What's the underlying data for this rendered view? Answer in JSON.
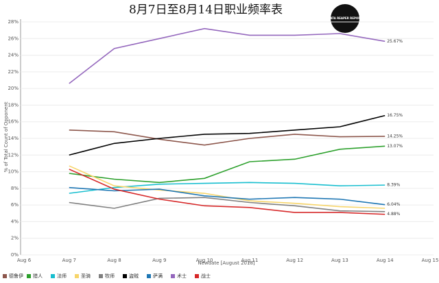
{
  "chart_data": {
    "type": "line",
    "title": "8月7日至8月14日职业频率表",
    "logo": "DATA REAPER REPORT",
    "x_label": "Newdate [August 2018]",
    "y_label": "% of Total Count of Opponent",
    "categories": [
      "Aug 6",
      "Aug 7",
      "Aug 8",
      "Aug 9",
      "Aug 10",
      "Aug 11",
      "Aug 12",
      "Aug 13",
      "Aug 14",
      "Aug 15"
    ],
    "ylim": [
      0,
      28
    ],
    "yticks": [
      {
        "value": 0,
        "label": "0%"
      },
      {
        "value": 2,
        "label": "2%"
      },
      {
        "value": 4,
        "label": "4%"
      },
      {
        "value": 6,
        "label": "6%"
      },
      {
        "value": 8,
        "label": "8%"
      },
      {
        "value": 10,
        "label": "10%"
      },
      {
        "value": 12,
        "label": "12%"
      },
      {
        "value": 14,
        "label": "14%"
      },
      {
        "value": 16,
        "label": "16%"
      },
      {
        "value": 18,
        "label": "18%"
      },
      {
        "value": 20,
        "label": "20%"
      },
      {
        "value": 22,
        "label": "22%"
      },
      {
        "value": 24,
        "label": "24%"
      },
      {
        "value": 26,
        "label": "26%"
      },
      {
        "value": 28,
        "label": "28%"
      }
    ],
    "grid": true,
    "legend": "bottom",
    "series": [
      {
        "name": "德鲁伊",
        "color": "#8c564b",
        "values": [
          null,
          15.0,
          14.8,
          13.9,
          13.2,
          14.0,
          14.5,
          14.2,
          14.25,
          null
        ],
        "value_labels": [
          null,
          null,
          null,
          null,
          null,
          null,
          null,
          null,
          "14.25%",
          null
        ]
      },
      {
        "name": "猎人",
        "color": "#2ca02c",
        "values": [
          null,
          9.8,
          9.1,
          8.7,
          9.2,
          11.2,
          11.5,
          12.7,
          13.07,
          null
        ],
        "value_labels": [
          null,
          null,
          null,
          null,
          null,
          null,
          null,
          null,
          "13.07%",
          null
        ]
      },
      {
        "name": "法师",
        "color": "#17becf",
        "values": [
          null,
          7.4,
          8.1,
          8.5,
          8.6,
          8.7,
          8.6,
          8.3,
          8.39,
          null
        ],
        "value_labels": [
          null,
          null,
          null,
          null,
          null,
          null,
          null,
          null,
          "8.39%",
          null
        ]
      },
      {
        "name": "圣骑",
        "color": "#f7d56a",
        "values": [
          null,
          10.7,
          8.3,
          7.8,
          7.4,
          6.5,
          6.2,
          5.8,
          5.6,
          null
        ]
      },
      {
        "name": "牧师",
        "color": "#7f7f7f",
        "values": [
          null,
          6.3,
          5.6,
          6.8,
          6.9,
          6.3,
          5.9,
          5.3,
          5.2,
          null
        ]
      },
      {
        "name": "盗贼",
        "color": "#000000",
        "values": [
          null,
          12.0,
          13.4,
          14.0,
          14.5,
          14.6,
          15.0,
          15.4,
          16.75,
          null
        ],
        "value_labels": [
          null,
          null,
          null,
          null,
          null,
          null,
          null,
          null,
          "16.75%",
          null
        ]
      },
      {
        "name": "萨满",
        "color": "#1f77b4",
        "values": [
          null,
          8.1,
          7.7,
          7.9,
          7.1,
          6.7,
          6.9,
          6.7,
          6.04,
          null
        ],
        "value_labels": [
          null,
          null,
          null,
          null,
          null,
          null,
          null,
          null,
          "6.04%",
          null
        ]
      },
      {
        "name": "术士",
        "color": "#9467bd",
        "values": [
          null,
          20.6,
          24.8,
          26.0,
          27.2,
          26.4,
          26.4,
          26.6,
          25.67,
          null
        ],
        "value_labels": [
          null,
          null,
          null,
          null,
          null,
          null,
          null,
          null,
          "25.67%",
          null
        ]
      },
      {
        "name": "战士",
        "color": "#d62728",
        "values": [
          null,
          10.3,
          7.9,
          6.7,
          5.9,
          5.7,
          5.1,
          5.1,
          4.88,
          null
        ],
        "value_labels": [
          null,
          null,
          null,
          null,
          null,
          null,
          null,
          null,
          "4.88%",
          null
        ]
      }
    ]
  }
}
